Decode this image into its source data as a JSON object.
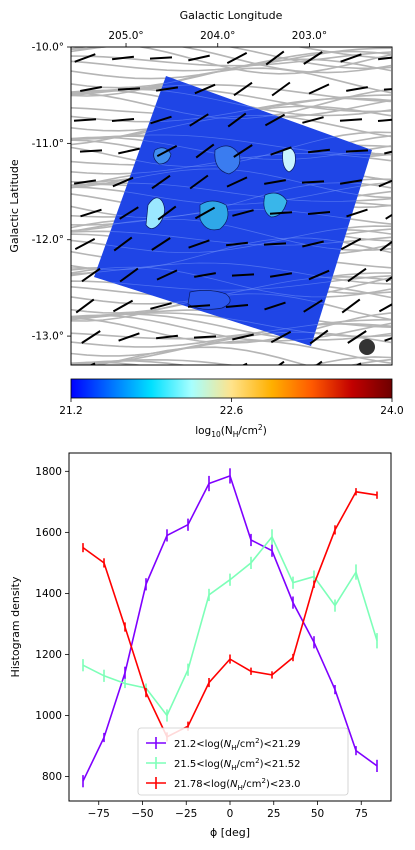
{
  "colors": {
    "map_blue": "#1f45e6",
    "stream_gray": "#b5b5b5",
    "vector_black": "#000000",
    "beam_dark": "#333333"
  },
  "colorbar": {
    "tick_labels": [
      "21.2",
      "22.6",
      "24.0"
    ],
    "label": "log$_{10}$($N_\\mathrm{H}$/cm$^2$)",
    "label_main": "log",
    "label_sub": "10",
    "label_rest": "(N",
    "label_sub2": "H",
    "label_end": "/cm",
    "label_sup": "2",
    "label_close": ")",
    "stops": [
      "#0000ff",
      "#0072ff",
      "#00e0ff",
      "#a6ffff",
      "#ffe38b",
      "#ffb000",
      "#ff5a00",
      "#c20000",
      "#6e0000"
    ]
  },
  "chart_data": [
    {
      "type": "image-map",
      "x_label": "Galactic Longitude",
      "y_label": "Galactic Latitude",
      "x_ticks": [
        "205.0°",
        "204.0°",
        "203.0°"
      ],
      "y_ticks": [
        "-10.0°",
        "-11.0°",
        "-12.0°",
        "-13.0°"
      ],
      "x_range": [
        205.6,
        202.1
      ],
      "y_range": [
        -13.3,
        -10.0
      ]
    },
    {
      "type": "line",
      "xlabel": "ϕ [deg]",
      "ylabel": "Histogram density",
      "xlim": [
        -92,
        92
      ],
      "ylim": [
        720,
        1860
      ],
      "x_ticks": [
        -75,
        -50,
        -25,
        0,
        25,
        50,
        75
      ],
      "y_ticks": [
        800,
        1000,
        1200,
        1400,
        1600,
        1800
      ],
      "x_tick_labels": [
        "−75",
        "−50",
        "−25",
        "0",
        "25",
        "50",
        "75"
      ],
      "y_tick_labels": [
        "800",
        "1000",
        "1200",
        "1400",
        "1600",
        "1800"
      ],
      "x": [
        -84,
        -72,
        -60,
        -48,
        -36,
        -24,
        -12,
        0,
        12,
        24,
        36,
        48,
        60,
        72,
        84
      ],
      "series": [
        {
          "legend_parts": [
            "21.2<log(",
            "N",
            "H",
            "/cm",
            "2",
            ")<21.29"
          ],
          "color": "#7f00ff",
          "values": [
            785,
            928,
            1140,
            1430,
            1590,
            1625,
            1760,
            1785,
            1575,
            1540,
            1370,
            1240,
            1085,
            885,
            835
          ],
          "err": [
            20,
            15,
            20,
            20,
            20,
            20,
            25,
            25,
            20,
            20,
            20,
            20,
            15,
            15,
            20
          ]
        },
        {
          "legend_parts": [
            "21.5<log(",
            "N",
            "H",
            "/cm",
            "2",
            ")<21.52"
          ],
          "color": "#7dffb8",
          "values": [
            1165,
            1130,
            1105,
            1090,
            1000,
            1150,
            1395,
            1445,
            1500,
            1585,
            1435,
            1455,
            1360,
            1470,
            1245
          ],
          "err": [
            20,
            20,
            15,
            15,
            20,
            20,
            20,
            20,
            20,
            25,
            20,
            20,
            20,
            25,
            25
          ]
        },
        {
          "legend_parts": [
            "21.78<log(",
            "N",
            "H",
            "/cm",
            "2",
            ")<23.0"
          ],
          "color": "#ff0000",
          "values": [
            1550,
            1500,
            1290,
            1075,
            930,
            965,
            1108,
            1185,
            1145,
            1133,
            1190,
            1430,
            1608,
            1733,
            1722
          ],
          "err": [
            15,
            15,
            15,
            15,
            15,
            15,
            15,
            15,
            12,
            12,
            12,
            12,
            15,
            12,
            12
          ]
        }
      ],
      "legend_position": "lower-center"
    }
  ]
}
